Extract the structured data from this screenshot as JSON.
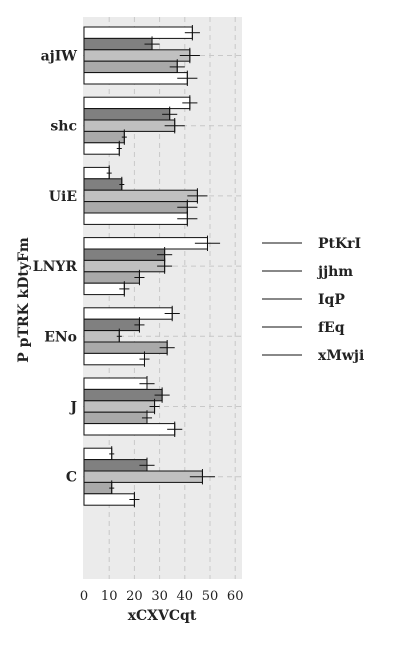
{
  "chart_data": {
    "type": "bar",
    "orientation": "horizontal",
    "title": "",
    "xlabel": "xCXVCqt",
    "ylabel": "P pTRK kDtyFm",
    "xlim": [
      0,
      60
    ],
    "xticks": [
      0,
      10,
      20,
      30,
      40,
      50,
      60
    ],
    "grid": "vertical dashed",
    "legend_position": "right",
    "categories": [
      "ajIW",
      "shc",
      "UiE",
      "LNYR",
      "ENo",
      "J",
      "C"
    ],
    "series": [
      {
        "name": "PtKrI",
        "color": "#ffffff",
        "values": [
          43,
          42,
          10,
          49,
          35,
          25,
          11
        ],
        "errors": [
          3,
          3,
          1,
          5,
          3,
          3,
          1
        ]
      },
      {
        "name": "jjhm",
        "color": "#808080",
        "values": [
          27,
          34,
          15,
          32,
          22,
          31,
          25
        ],
        "errors": [
          3,
          3,
          1,
          3,
          2,
          3,
          3
        ]
      },
      {
        "name": "IqP",
        "color": "#c0c0c0",
        "values": [
          42,
          36,
          45,
          32,
          14,
          28,
          47
        ],
        "errors": [
          4,
          4,
          4,
          3,
          1,
          2,
          5
        ]
      },
      {
        "name": "fEq",
        "color": "#a9a9a9",
        "values": [
          37,
          16,
          41,
          22,
          33,
          25,
          11
        ],
        "errors": [
          3,
          1,
          4,
          2,
          3,
          2,
          1
        ]
      },
      {
        "name": "xMwji",
        "color": "#ffffff",
        "values": [
          41,
          14,
          41,
          16,
          24,
          36,
          20
        ],
        "errors": [
          4,
          1,
          4,
          2,
          2,
          3,
          2
        ]
      }
    ]
  }
}
